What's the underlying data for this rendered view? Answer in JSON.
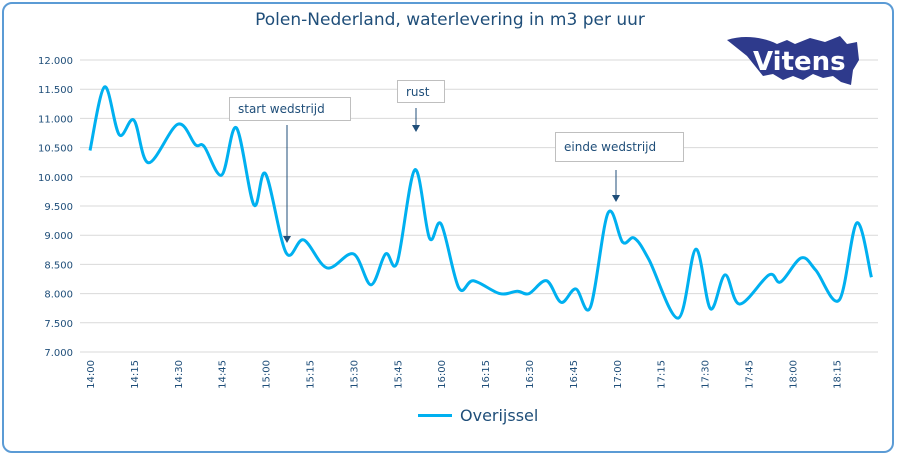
{
  "chart_data": {
    "type": "line",
    "title": "Polen-Nederland, waterlevering in m3 per uur",
    "xlabel": "",
    "ylabel": "",
    "ylim": [
      7000,
      12000
    ],
    "yticks": [
      "7.000",
      "7.500",
      "8.000",
      "8.500",
      "9.000",
      "9.500",
      "10.000",
      "10.500",
      "11.000",
      "11.500",
      "12.000"
    ],
    "xticks": [
      "14:00",
      "14:15",
      "14:30",
      "14:45",
      "15:00",
      "15:15",
      "15:30",
      "15:45",
      "16:00",
      "16:15",
      "16:30",
      "16:45",
      "17:00",
      "17:15",
      "17:30",
      "17:45",
      "18:00",
      "18:15"
    ],
    "grid": true,
    "legend_position": "bottom",
    "color": "#00b0f0",
    "series": [
      {
        "name": "Overijssel",
        "x": [
          "14:00",
          "14:05",
          "14:10",
          "14:15",
          "14:20",
          "14:30",
          "14:36",
          "14:39",
          "14:45",
          "14:50",
          "14:56",
          "15:00",
          "15:07",
          "15:13",
          "15:21",
          "15:30",
          "15:36",
          "15:41",
          "15:45",
          "15:51",
          "15:56",
          "16:00",
          "16:06",
          "16:11",
          "16:20",
          "16:26",
          "16:30",
          "16:36",
          "16:41",
          "16:46",
          "16:51",
          "16:57",
          "17:02",
          "17:06",
          "17:11",
          "17:21",
          "17:27",
          "17:32",
          "17:37",
          "17:42",
          "17:52",
          "17:56",
          "18:03",
          "18:08",
          "18:16",
          "18:22",
          "18:27"
        ],
        "values": [
          10450,
          11540,
          10720,
          10970,
          10240,
          10900,
          10550,
          10520,
          10030,
          10840,
          9520,
          10050,
          8700,
          8920,
          8440,
          8680,
          8150,
          8680,
          8540,
          10120,
          8950,
          9190,
          8100,
          8220,
          8000,
          8040,
          8000,
          8220,
          7850,
          8080,
          7770,
          9380,
          8880,
          8950,
          8580,
          7580,
          8760,
          7740,
          8320,
          7820,
          8320,
          8200,
          8610,
          8400,
          7890,
          9210,
          8280
        ]
      }
    ],
    "annotations": [
      {
        "text": "start wedstrijd",
        "time": "15:07"
      },
      {
        "text": "rust",
        "time": "15:51"
      },
      {
        "text": "einde wedstrijd",
        "time": "16:57"
      }
    ]
  },
  "logo": {
    "text": "Vitens",
    "color": "#2e3a8c"
  }
}
